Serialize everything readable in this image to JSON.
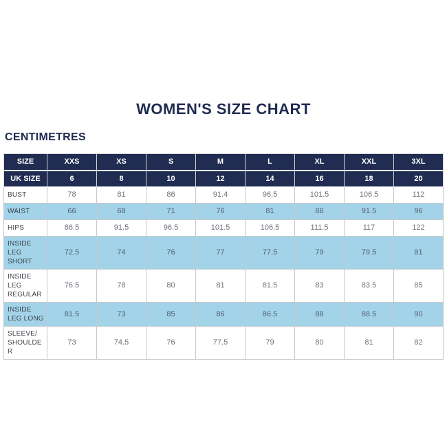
{
  "chart_data": {
    "type": "table",
    "title": "WOMEN'S SIZE CHART",
    "units_label": "CENTIMETRES",
    "header_rows": [
      {
        "label": "SIZE",
        "values": [
          "XXS",
          "XS",
          "S",
          "M",
          "L",
          "XL",
          "XXL",
          "3XL"
        ]
      },
      {
        "label": "UK SIZE",
        "values": [
          "6",
          "8",
          "10",
          "12",
          "14",
          "16",
          "18",
          "20"
        ]
      }
    ],
    "body_rows": [
      {
        "label": "BUST",
        "shaded": false,
        "values": [
          "78",
          "81",
          "86",
          "91.4",
          "96.5",
          "101.5",
          "106.5",
          "112"
        ]
      },
      {
        "label": "WAIST",
        "shaded": true,
        "values": [
          "66",
          "68",
          "71",
          "76",
          "81",
          "86",
          "91.5",
          "96"
        ]
      },
      {
        "label": "HIPS",
        "shaded": false,
        "values": [
          "86.5",
          "91.5",
          "96.5",
          "101.5",
          "106.5",
          "111.5",
          "117",
          "122"
        ]
      },
      {
        "label": "INSIDE LEG SHORT",
        "shaded": true,
        "values": [
          "72.5",
          "74",
          "76",
          "77",
          "77.5",
          "79",
          "79.5",
          "81"
        ]
      },
      {
        "label": "INSIDE LEG REGULAR",
        "shaded": false,
        "values": [
          "76.5",
          "78",
          "80",
          "81",
          "81.5",
          "83",
          "83.5",
          "85"
        ]
      },
      {
        "label": "INSIDE LEG LONG",
        "shaded": true,
        "values": [
          "81.5",
          "73",
          "85",
          "86",
          "86.5",
          "88",
          "88.5",
          "90"
        ]
      },
      {
        "label": "SLEEVE/SHOULDER",
        "shaded": false,
        "values": [
          "73",
          "74.5",
          "76",
          "77.5",
          "79",
          "80",
          "81",
          "82"
        ]
      }
    ]
  },
  "colors": {
    "navy": "#202c51",
    "light_blue": "#a2d3e9",
    "border": "#c6c8ca",
    "label_text": "#3d424a",
    "value_text": "#6d727a",
    "header_text": "#ffffff",
    "page_bg": "#ffffff"
  }
}
